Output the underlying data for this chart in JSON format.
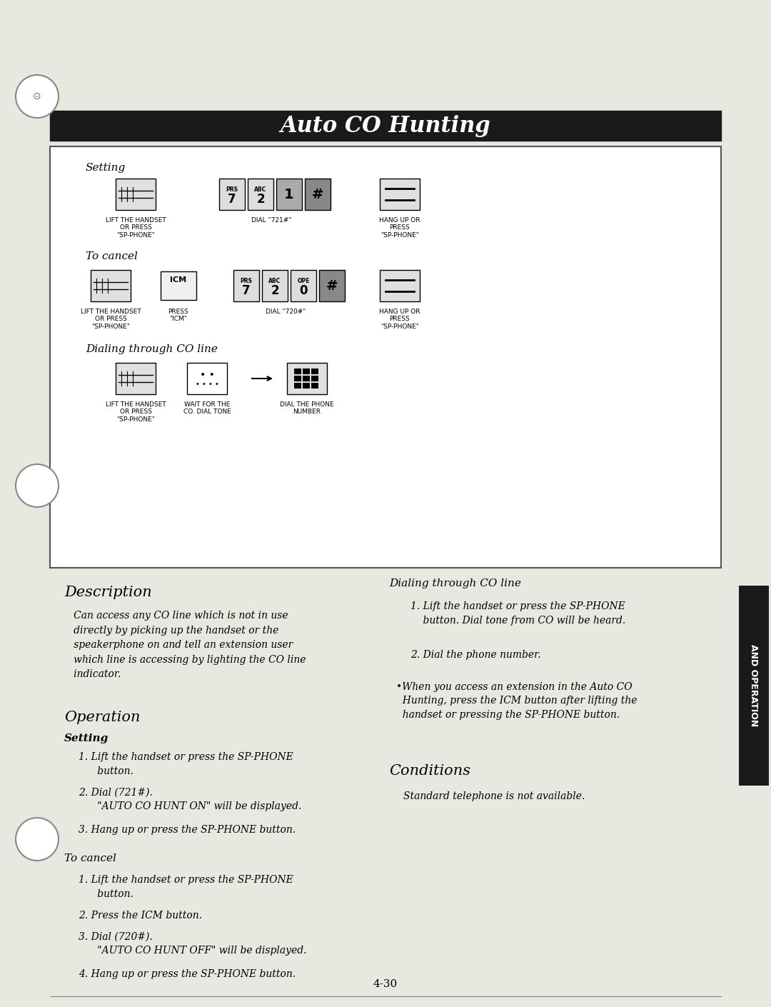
{
  "title": "Auto CO Hunting",
  "background_color": "#f5f5f0",
  "page_background": "#e8e8e0",
  "title_bar_color": "#1a1a1a",
  "title_text_color": "#ffffff",
  "title_text": "Auto CO Hunting",
  "box_bg": "#ffffff",
  "box_border": "#333333",
  "section_setting": "Setting",
  "section_cancel": "To cancel",
  "section_dialing": "Dialing through CO line",
  "setting_step1_label": "LIFT THE HANDSET\nOR PRESS\n\"SP-PHONE\"",
  "setting_step2_label": "DIAL \"721#\"",
  "setting_step3_label": "HANG UP OR\nPRESS\n\"SP-PHONE\"",
  "cancel_step1_label": "LIFT THE HANDSET\nOR PRESS\n\"SP-PHONE\"",
  "cancel_step2_label": "PRESS\n\"ICM\"",
  "cancel_step3_label": "DIAL \"720#\"",
  "cancel_step4_label": "HANG UP OR\nPRESS\n\"SP-PHONE\"",
  "dialing_step1_label": "LIFT THE HANDSET\nOR PRESS\n\"SP-PHONE\"",
  "dialing_step2_label": "WAIT FOR THE\nCO. DIAL TONE",
  "dialing_step3_label": "DIAL THE PHONE\nNUMBER",
  "desc_title": "Description",
  "desc_body": "   Can access any CO line which is not in use\n   directly by picking up the handset or the\n   speakerphone on and tell an extension user\n   which line is accessing by lighting the CO line\n   indicator.",
  "op_title": "Operation",
  "op_setting_title": "Setting",
  "op_setting_1": "1. Lift the handset or press the SP-PHONE\n      button.",
  "op_setting_2": "2. Dial (721#).\n      \"AUTO CO HUNT ON\" will be displayed.",
  "op_setting_3": "3. Hang up or press the SP-PHONE button.",
  "op_cancel_title": "To cancel",
  "op_cancel_1": "1. Lift the handset or press the SP-PHONE\n      button.",
  "op_cancel_2": "2. Press the ICM button.",
  "op_cancel_3": "3. Dial (720#).\n      \"AUTO CO HUNT OFF\" will be displayed.",
  "op_cancel_4": "4. Hang up or press the SP-PHONE button.",
  "right_dialing_title": "Dialing through CO line",
  "right_dialing_1": "1. Lift the handset or press the SP-PHONE\n    button. Dial tone from CO will be heard.",
  "right_dialing_2": "2. Dial the phone number.",
  "right_dialing_bullet": "•When you access an extension in the Auto CO\n  Hunting, press the ICM button after lifting the\n  handset or pressing the SP-PHONE button.",
  "conditions_title": "Conditions",
  "conditions_body": "Standard telephone is not available.",
  "page_number": "4-30",
  "tab_text": "AND OPERATION"
}
